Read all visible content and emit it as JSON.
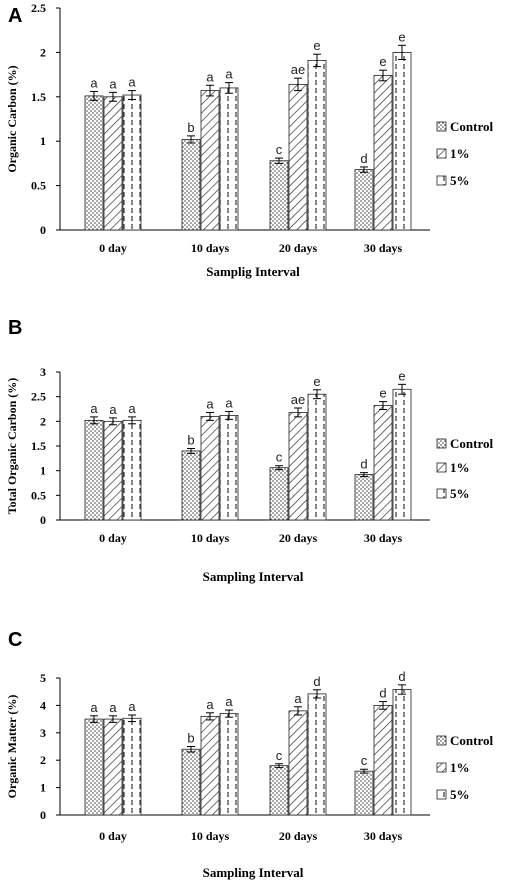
{
  "colors": {
    "axis": "#000000",
    "bar_stroke": "#222222",
    "pattern_ink": "#333333"
  },
  "legend": [
    "Control",
    "1%",
    "5%"
  ],
  "chart_data": [
    {
      "panel": "A",
      "type": "bar",
      "categories": [
        "0 day",
        "10 days",
        "20 days",
        "30 days"
      ],
      "xlabel": "Samplig Interval",
      "ylabel": "Organic Carbon (%)",
      "ylim": [
        0,
        2.5
      ],
      "yticks": [
        "0",
        "0.5",
        "1",
        "1.5",
        "2",
        "2.5"
      ],
      "series": [
        {
          "name": "Control",
          "pattern": "dots",
          "values": [
            1.51,
            1.02,
            0.78,
            0.68
          ],
          "errors": [
            0.05,
            0.04,
            0.03,
            0.03
          ],
          "labels": [
            "a",
            "b",
            "c",
            "d"
          ]
        },
        {
          "name": "1%",
          "pattern": "hatch",
          "values": [
            1.5,
            1.57,
            1.64,
            1.74
          ],
          "errors": [
            0.05,
            0.06,
            0.07,
            0.06
          ],
          "labels": [
            "a",
            "a",
            "ae",
            "e"
          ]
        },
        {
          "name": "5%",
          "pattern": "dash",
          "values": [
            1.52,
            1.6,
            1.91,
            2.0
          ],
          "errors": [
            0.05,
            0.06,
            0.07,
            0.08
          ],
          "labels": [
            "a",
            "a",
            "e",
            "e"
          ]
        }
      ]
    },
    {
      "panel": "B",
      "type": "bar",
      "categories": [
        "0 day",
        "10 days",
        "20 days",
        "30 days"
      ],
      "xlabel": "Sampling Interval",
      "ylabel": "Total Organic Carbon (%)",
      "ylim": [
        0,
        3
      ],
      "yticks": [
        "0",
        "0.5",
        "1",
        "1.5",
        "2",
        "2.5",
        "3"
      ],
      "series": [
        {
          "name": "Control",
          "pattern": "dots",
          "values": [
            2.02,
            1.4,
            1.06,
            0.92
          ],
          "errors": [
            0.07,
            0.05,
            0.04,
            0.04
          ],
          "labels": [
            "a",
            "b",
            "c",
            "d"
          ]
        },
        {
          "name": "1%",
          "pattern": "hatch",
          "values": [
            2.0,
            2.1,
            2.18,
            2.32
          ],
          "errors": [
            0.07,
            0.08,
            0.09,
            0.08
          ],
          "labels": [
            "a",
            "a",
            "ae",
            "e"
          ]
        },
        {
          "name": "5%",
          "pattern": "dash",
          "values": [
            2.02,
            2.12,
            2.55,
            2.65
          ],
          "errors": [
            0.07,
            0.08,
            0.09,
            0.1
          ],
          "labels": [
            "a",
            "a",
            "e",
            "e"
          ]
        }
      ]
    },
    {
      "panel": "C",
      "type": "bar",
      "categories": [
        "0 day",
        "10 days",
        "20 days",
        "30 days"
      ],
      "xlabel": "Sampling Interval",
      "ylabel": "Organic Matter (%)",
      "ylim": [
        0,
        5
      ],
      "yticks": [
        "0",
        "1",
        "2",
        "3",
        "4",
        "5"
      ],
      "series": [
        {
          "name": "Control",
          "pattern": "dots",
          "values": [
            3.5,
            2.4,
            1.8,
            1.6
          ],
          "errors": [
            0.12,
            0.1,
            0.07,
            0.07
          ],
          "labels": [
            "a",
            "b",
            "c",
            "c"
          ]
        },
        {
          "name": "1%",
          "pattern": "hatch",
          "values": [
            3.5,
            3.6,
            3.8,
            4.0
          ],
          "errors": [
            0.12,
            0.13,
            0.15,
            0.14
          ],
          "labels": [
            "a",
            "a",
            "a",
            "d"
          ]
        },
        {
          "name": "5%",
          "pattern": "dash",
          "values": [
            3.53,
            3.7,
            4.42,
            4.58
          ],
          "errors": [
            0.12,
            0.13,
            0.15,
            0.17
          ],
          "labels": [
            "a",
            "a",
            "d",
            "d"
          ]
        }
      ]
    }
  ]
}
